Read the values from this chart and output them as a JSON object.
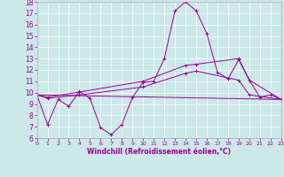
{
  "xlabel": "Windchill (Refroidissement éolien,°C)",
  "bg_color": "#cce8e8",
  "line_color": "#990099",
  "xlim": [
    0,
    23
  ],
  "ylim": [
    6,
    18
  ],
  "xticks": [
    0,
    1,
    2,
    3,
    4,
    5,
    6,
    7,
    8,
    9,
    10,
    11,
    12,
    13,
    14,
    15,
    16,
    17,
    18,
    19,
    20,
    21,
    22,
    23
  ],
  "yticks": [
    6,
    7,
    8,
    9,
    10,
    11,
    12,
    13,
    14,
    15,
    16,
    17,
    18
  ],
  "line1_x": [
    0,
    1,
    2,
    3,
    4,
    5,
    6,
    7,
    8,
    9,
    10,
    11,
    12,
    13,
    14,
    15,
    16,
    17,
    18,
    19,
    20,
    21,
    22,
    23
  ],
  "line1_y": [
    9.8,
    7.2,
    9.4,
    8.8,
    10.1,
    9.5,
    6.9,
    6.3,
    7.2,
    9.6,
    10.9,
    11.0,
    13.0,
    17.2,
    18.0,
    17.2,
    15.2,
    11.8,
    11.2,
    12.9,
    11.1,
    9.6,
    9.8,
    9.4
  ],
  "line2_x": [
    0,
    23
  ],
  "line2_y": [
    9.8,
    9.4
  ],
  "line3_x": [
    0,
    1,
    4,
    10,
    14,
    15,
    19,
    20,
    23
  ],
  "line3_y": [
    9.8,
    9.6,
    10.05,
    11.0,
    12.4,
    12.5,
    13.0,
    11.1,
    9.4
  ],
  "line4_x": [
    0,
    1,
    4,
    10,
    14,
    15,
    19,
    20,
    23
  ],
  "line4_y": [
    9.8,
    9.5,
    9.8,
    10.5,
    11.7,
    11.9,
    11.1,
    9.8,
    9.4
  ]
}
